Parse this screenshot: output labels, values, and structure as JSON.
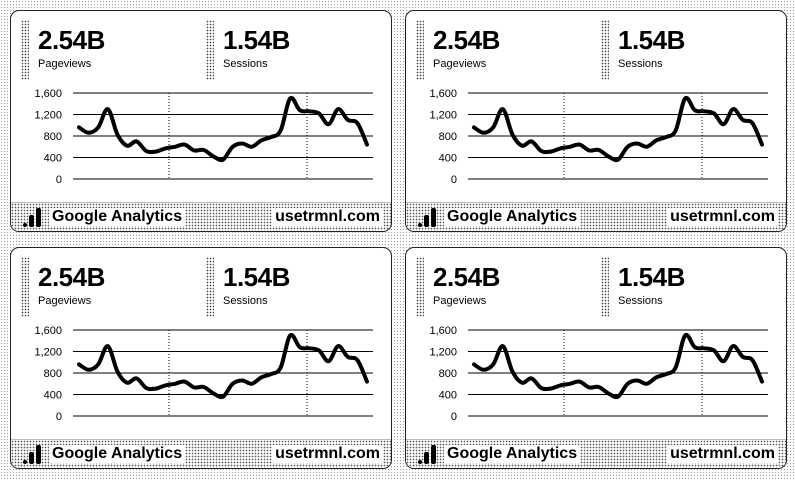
{
  "panels": [
    {
      "metrics": [
        {
          "value": "2.54B",
          "label": "Pageviews"
        },
        {
          "value": "1.54B",
          "label": "Sessions"
        }
      ],
      "footer": {
        "title": "Google Analytics",
        "site": "usetrmnl.com"
      }
    },
    {
      "metrics": [
        {
          "value": "2.54B",
          "label": "Pageviews"
        },
        {
          "value": "1.54B",
          "label": "Sessions"
        }
      ],
      "footer": {
        "title": "Google Analytics",
        "site": "usetrmnl.com"
      }
    },
    {
      "metrics": [
        {
          "value": "2.54B",
          "label": "Pageviews"
        },
        {
          "value": "1.54B",
          "label": "Sessions"
        }
      ],
      "footer": {
        "title": "Google Analytics",
        "site": "usetrmnl.com"
      }
    },
    {
      "metrics": [
        {
          "value": "2.54B",
          "label": "Pageviews"
        },
        {
          "value": "1.54B",
          "label": "Sessions"
        }
      ],
      "footer": {
        "title": "Google Analytics",
        "site": "usetrmnl.com"
      }
    }
  ],
  "chart_data": {
    "type": "line",
    "y_ticks": [
      "1,600",
      "1,200",
      "800",
      "400",
      "0"
    ],
    "ylim": [
      0,
      1600
    ],
    "grid": true,
    "values": [
      960,
      860,
      960,
      1300,
      830,
      620,
      700,
      520,
      510,
      570,
      600,
      640,
      530,
      540,
      420,
      360,
      600,
      660,
      600,
      720,
      780,
      900,
      1500,
      1280,
      1260,
      1220,
      1020,
      1300,
      1100,
      1040,
      640
    ]
  }
}
